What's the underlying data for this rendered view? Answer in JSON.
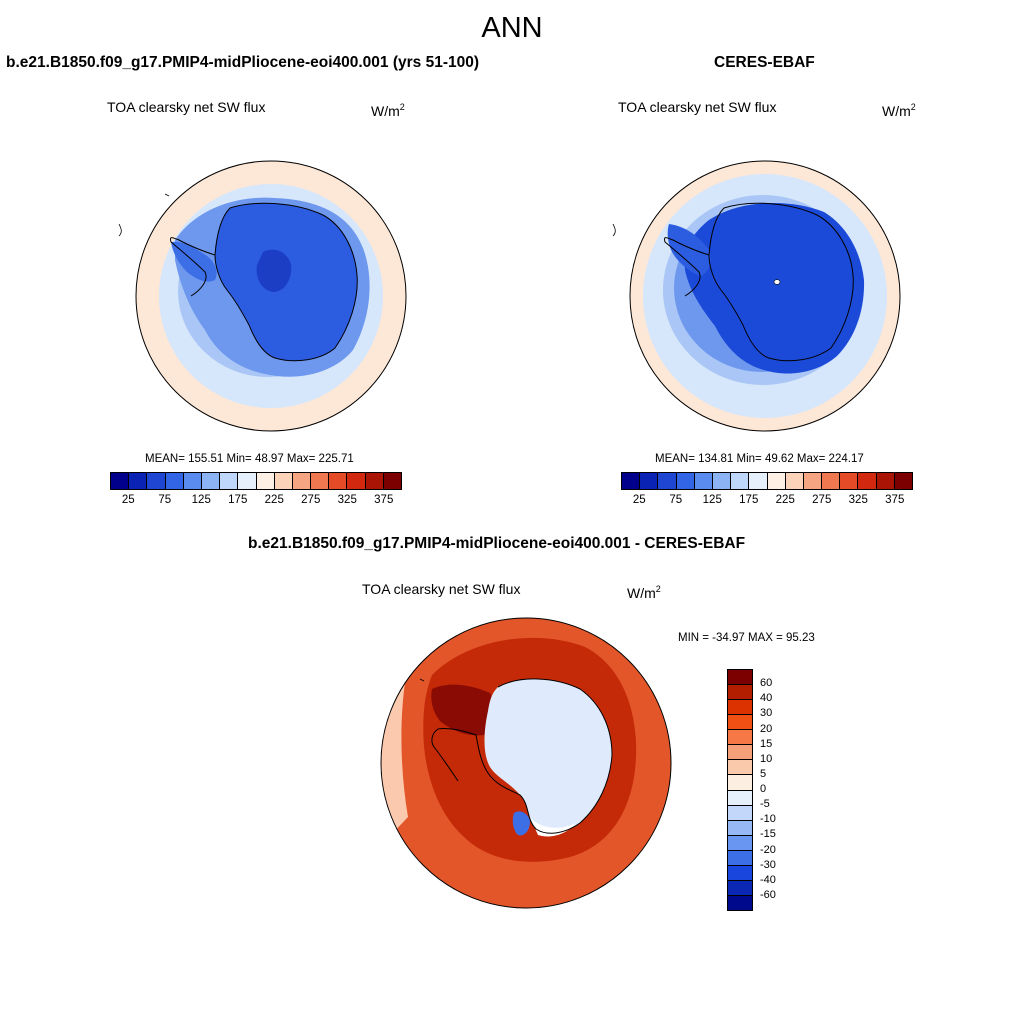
{
  "title": "ANN",
  "panels": {
    "model": {
      "title": "b.e21.B1850.f09_g17.PMIP4-midPliocene-eoi400.001 (yrs 51-100)",
      "variable": "TOA clearsky net SW flux",
      "units": "W/m",
      "units_sup": "2",
      "stats": "MEAN= 155.51  Min=  48.97  Max= 225.71",
      "mean": 155.51,
      "min": 48.97,
      "max": 225.71
    },
    "obs": {
      "title": "CERES-EBAF",
      "variable": "TOA clearsky net SW flux",
      "units": "W/m",
      "units_sup": "2",
      "stats": "MEAN= 134.81  Min=  49.62  Max= 224.17",
      "mean": 134.81,
      "min": 49.62,
      "max": 224.17
    },
    "diff": {
      "title": "b.e21.B1850.f09_g17.PMIP4-midPliocene-eoi400.001 - CERES-EBAF",
      "variable": "TOA clearsky net SW flux",
      "units": "W/m",
      "units_sup": "2",
      "stats": "MIN = -34.97 MAX =  95.23",
      "min": -34.97,
      "max": 95.23
    }
  },
  "colorbar_abs": {
    "tick_labels": [
      "25",
      "75",
      "125",
      "175",
      "225",
      "275",
      "325",
      "375"
    ],
    "colors": [
      "#00008c",
      "#0a23b4",
      "#1e46d2",
      "#3264e6",
      "#5a8cf0",
      "#8cb4f5",
      "#bed7fa",
      "#e6f0fc",
      "#fff0e6",
      "#fcd2b9",
      "#f5a582",
      "#f07850",
      "#e64b28",
      "#d2280f",
      "#aa1405",
      "#7d0000"
    ]
  },
  "colorbar_diff": {
    "tick_labels": [
      "60",
      "40",
      "30",
      "20",
      "15",
      "10",
      "5",
      "0",
      "-5",
      "-10",
      "-15",
      "-20",
      "-30",
      "-40",
      "-60"
    ],
    "colors": [
      "#7d0000",
      "#b41e00",
      "#dc3200",
      "#f05014",
      "#f57846",
      "#f5a078",
      "#fac8aa",
      "#fdeee2",
      "#e6f0fc",
      "#c3d7fa",
      "#96b9f5",
      "#6996f0",
      "#3c6ee6",
      "#1946dc",
      "#0a28b4",
      "#00088c"
    ]
  },
  "map_colors": {
    "land_outline": "#000000",
    "abs_ocean_outer": "#fde8d8",
    "abs_ocean_mid": "#d6e6fb",
    "abs_ice_edge": "#a9c6f6",
    "abs_coast": "#6e98ee",
    "abs_ice_model": "#2c5de0",
    "abs_ice_obs": "#1c4ad8",
    "abs_ice_deep": "#1c3ec4",
    "diff_ocean": "#e2562a",
    "diff_ring": "#c42a08",
    "diff_peak": "#8a0a04",
    "diff_ice": "#dfeafc",
    "diff_neg": "#3c6ee6",
    "diff_ocean_far": "#fbc9ad",
    "diff_white": "#ffffff"
  }
}
